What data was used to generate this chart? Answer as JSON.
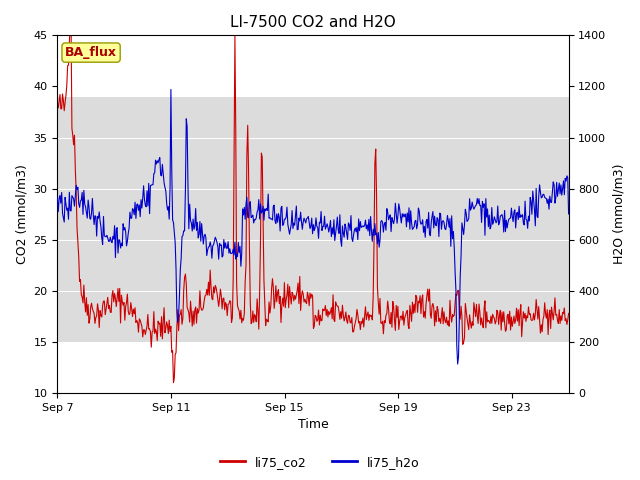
{
  "title": "LI-7500 CO2 and H2O",
  "xlabel": "Time",
  "ylabel_left": "CO2 (mmol/m3)",
  "ylabel_right": "H2O (mmol/m3)",
  "legend_label1": "li75_co2",
  "legend_label2": "li75_h2o",
  "watermark_text": "BA_flux",
  "color_co2": "#cc0000",
  "color_h2o": "#0000cc",
  "ylim_left": [
    10,
    45
  ],
  "ylim_right": [
    0,
    1400
  ],
  "yticks_left": [
    10,
    15,
    20,
    25,
    30,
    35,
    40,
    45
  ],
  "yticks_right": [
    0,
    200,
    400,
    600,
    800,
    1000,
    1200,
    1400
  ],
  "band_ymin": 15,
  "band_ymax": 39,
  "band_color": "#dcdcdc",
  "xtick_labels": [
    "Sep 7",
    "Sep 11",
    "Sep 15",
    "Sep 19",
    "Sep 23"
  ],
  "xtick_positions": [
    0,
    4,
    8,
    12,
    16
  ],
  "xlim": [
    0,
    18
  ],
  "title_fontsize": 11,
  "axis_fontsize": 9,
  "tick_fontsize": 8,
  "watermark_fontsize": 9,
  "line_width": 0.8
}
